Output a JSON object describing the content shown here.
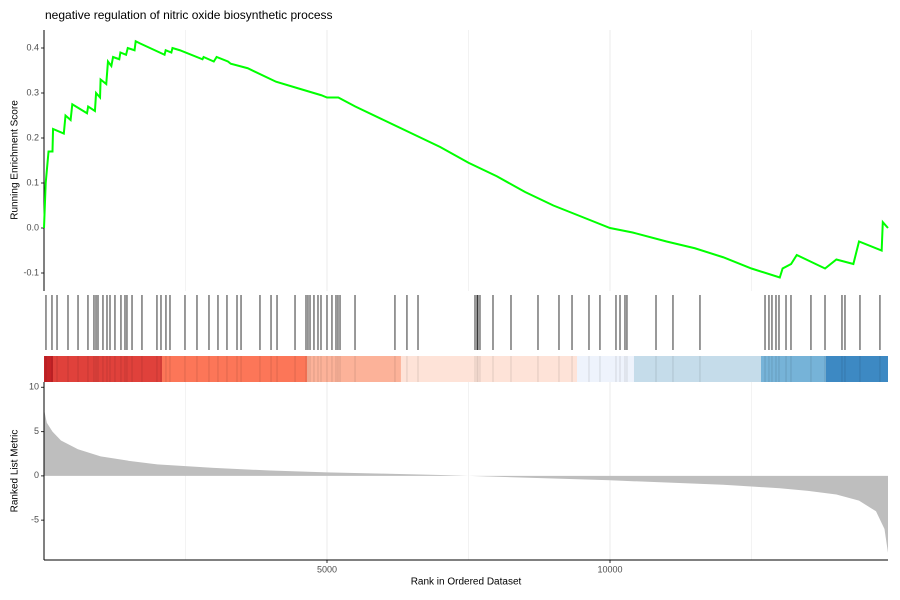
{
  "chart_data": [
    {
      "type": "line",
      "title": "negative regulation of nitric oxide biosynthetic process",
      "ylabel": "Running Enrichment Score",
      "color": "#00ff00",
      "xlim": [
        0,
        14912
      ],
      "ylim": [
        -0.14,
        0.44
      ],
      "yticks": [
        -0.1,
        {
          "value": 0,
          "label": "0.0"
        },
        0.1,
        0.2,
        0.3,
        0.4
      ],
      "x": [
        0,
        30,
        80,
        150,
        160,
        350,
        380,
        470,
        500,
        760,
        780,
        900,
        920,
        990,
        1000,
        1100,
        1130,
        1190,
        1220,
        1330,
        1350,
        1450,
        1480,
        1600,
        1620,
        1700,
        2130,
        2150,
        2250,
        2270,
        2400,
        2800,
        2820,
        3000,
        3050,
        3250,
        3300,
        3600,
        4100,
        4500,
        4900,
        5000,
        5200,
        5500,
        6000,
        6500,
        7000,
        7500,
        8000,
        8500,
        9000,
        9500,
        10000,
        10400,
        11000,
        11500,
        12000,
        12500,
        13000,
        13050,
        13200,
        13300,
        13800,
        14000,
        14300,
        14400,
        14800,
        14820,
        14912
      ],
      "values": [
        0,
        0.1,
        0.17,
        0.17,
        0.22,
        0.21,
        0.25,
        0.24,
        0.275,
        0.255,
        0.27,
        0.26,
        0.3,
        0.29,
        0.33,
        0.32,
        0.37,
        0.36,
        0.38,
        0.375,
        0.39,
        0.385,
        0.4,
        0.395,
        0.415,
        0.41,
        0.385,
        0.395,
        0.39,
        0.4,
        0.395,
        0.375,
        0.38,
        0.37,
        0.38,
        0.37,
        0.365,
        0.355,
        0.325,
        0.31,
        0.295,
        0.29,
        0.29,
        0.27,
        0.24,
        0.21,
        0.18,
        0.145,
        0.115,
        0.08,
        0.05,
        0.025,
        0,
        -0.01,
        -0.03,
        -0.045,
        -0.065,
        -0.09,
        -0.11,
        -0.09,
        -0.08,
        -0.06,
        -0.09,
        -0.07,
        -0.08,
        -0.03,
        -0.05,
        0.013,
        0
      ]
    },
    {
      "type": "rug",
      "color": "#000000",
      "x": [
        35,
        141,
        230,
        424,
        601,
        777,
        883,
        919,
        954,
        1042,
        1113,
        1166,
        1254,
        1360,
        1431,
        1466,
        1555,
        1731,
        1996,
        2067,
        2155,
        2226,
        2491,
        2703,
        2915,
        3074,
        3233,
        3410,
        3481,
        3816,
        4011,
        4117,
        4435,
        4629,
        4664,
        4700,
        4770,
        4841,
        4894,
        5000,
        5088,
        5159,
        5194,
        5230,
        5495,
        6201,
        6413,
        6608,
        7615,
        7650,
        7668,
        7703,
        7933,
        8251,
        8728,
        9099,
        9329,
        9629,
        9823,
        10106,
        10177,
        10265,
        10300,
        10813,
        11113,
        11590,
        12739,
        12809,
        12862,
        12933,
        12986,
        13110,
        13198,
        13551,
        13799,
        14099,
        14152,
        14417,
        14770
      ],
      "bands": [
        {
          "x": [
            0,
            159
          ],
          "color": "#c52226"
        },
        {
          "x": [
            159,
            2085
          ],
          "color": "#e0413b"
        },
        {
          "x": [
            2085,
            4647
          ],
          "color": "#fc7658"
        },
        {
          "x": [
            4647,
            6307
          ],
          "color": "#fcb299"
        },
        {
          "x": [
            6307,
            9417
          ],
          "color": "#fee3d8"
        },
        {
          "x": [
            9417,
            10424
          ],
          "color": "#eef3fc"
        },
        {
          "x": [
            10424,
            12668
          ],
          "color": "#c5dcea"
        },
        {
          "x": [
            12668,
            13816
          ],
          "color": "#76b3d8"
        },
        {
          "x": [
            13816,
            14912
          ],
          "color": "#3d89c3"
        }
      ]
    },
    {
      "type": "area",
      "xlabel": "Rank in Ordered Dataset",
      "ylabel": "Ranked List Metric",
      "color": "#bebebe",
      "xlim": [
        0,
        14912
      ],
      "ylim": [
        -9.5,
        10.6
      ],
      "yticks": [
        -5,
        0,
        5,
        10
      ],
      "xticks": [
        5000,
        10000
      ],
      "minor_xticks": [
        2500,
        7500,
        12500
      ],
      "x": [
        0,
        50,
        150,
        300,
        600,
        1000,
        1500,
        2000,
        3000,
        4000,
        5000,
        6000,
        7000,
        7500,
        8000,
        9000,
        10000,
        11000,
        12000,
        12500,
        13000,
        13500,
        14000,
        14400,
        14700,
        14850,
        14912
      ],
      "values": [
        7.5,
        6,
        5,
        4,
        3,
        2.2,
        1.7,
        1.3,
        0.9,
        0.6,
        0.4,
        0.25,
        0.1,
        0,
        -0.1,
        -0.3,
        -0.5,
        -0.75,
        -1.0,
        -1.2,
        -1.4,
        -1.7,
        -2.1,
        -2.8,
        -4,
        -6,
        -8.7
      ]
    }
  ]
}
